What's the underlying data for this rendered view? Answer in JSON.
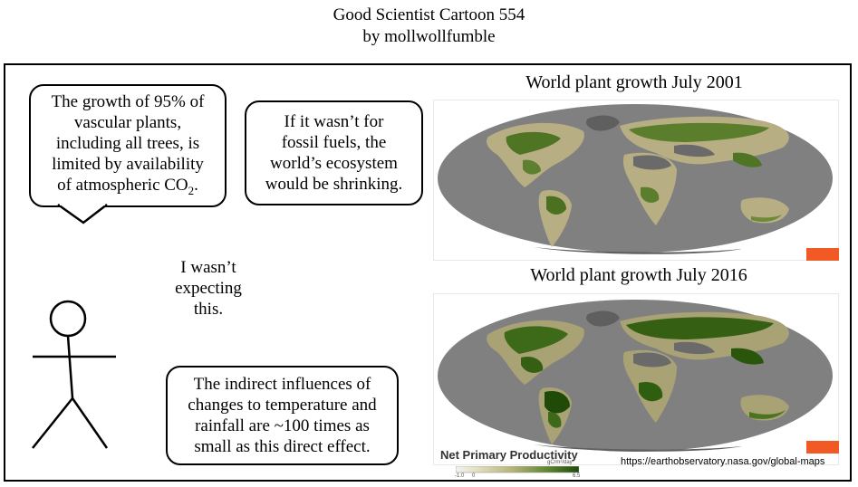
{
  "header": {
    "title": "Good Scientist Cartoon 554",
    "byline": "by mollwollfumble"
  },
  "bubbles": {
    "co2": {
      "line1": "The growth of 95% of",
      "line2": "vascular plants,",
      "line3": "including all trees, is",
      "line4": "limited by availability",
      "line5_prefix": "of atmospheric CO",
      "line5_sub": "2",
      "line5_suffix": "."
    },
    "fossil": {
      "line1": "If it wasn’t for",
      "line2": "fossil fuels, the",
      "line3": "world’s ecosystem",
      "line4": "would be shrinking."
    },
    "indirect": {
      "line1": "The indirect influences of",
      "line2": "changes to temperature and",
      "line3": "rainfall are ~100 times as",
      "line4": "small as this direct effect."
    }
  },
  "character_caption": {
    "line1": "I wasn’t",
    "line2": "expecting",
    "line3": "this."
  },
  "maps": {
    "map2001": {
      "title": "World plant growth July 2001"
    },
    "map2016": {
      "title": "World plant growth July 2016"
    },
    "legend": {
      "label": "Net Primary Productivity",
      "units": "gC/m²/day",
      "min": "-1.0",
      "zero": "0",
      "max": "6.5"
    },
    "source_url": "https://earthobservatory.nasa.gov/global-maps"
  },
  "colors": {
    "ocean_gray": "#808080",
    "land_tan": "#b8ae84",
    "vegetation_green": "#3f6a1c",
    "ice_gray": "#5f5f5f",
    "share_orange": "#f15a24"
  }
}
